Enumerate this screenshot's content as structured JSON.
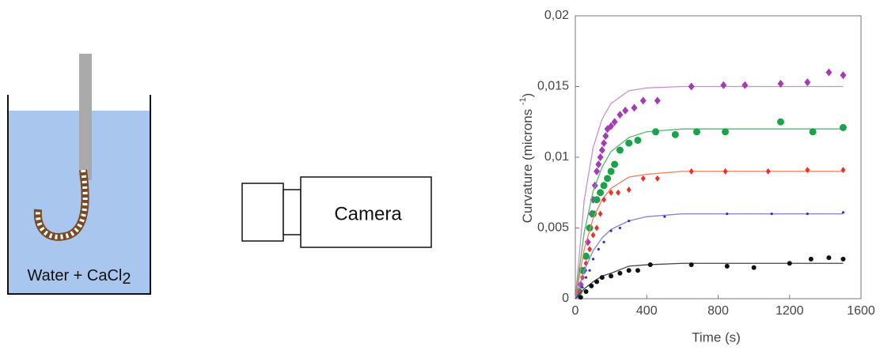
{
  "diagram": {
    "beaker_label": {
      "text": "Water + CaCl",
      "subscript": "2"
    },
    "camera_label": "Camera"
  },
  "chart_data": {
    "type": "scatter",
    "ylabel": {
      "text": "Curvature (microns ",
      "superscript": "-1",
      "end": ")"
    },
    "xlabel": "Time (s)",
    "xlim": [
      0,
      1600
    ],
    "xticks": [
      0,
      400,
      800,
      1200,
      1600
    ],
    "ylim": [
      0,
      0.02
    ],
    "yticks": [
      0,
      {
        "value": 0.005,
        "label": "0,005"
      },
      {
        "value": 0.01,
        "label": "0,01"
      },
      {
        "value": 0.015,
        "label": "0,015"
      },
      {
        "value": 0.02,
        "label": "0,02"
      }
    ],
    "fit_x": [
      0,
      50,
      100,
      150,
      200,
      300,
      400,
      600,
      800,
      1000,
      1200,
      1500
    ],
    "series": [
      {
        "color": "#a43cb4",
        "fit_color": "#c98fd6",
        "marker": "diamond",
        "x": [
          13,
          30,
          50,
          60,
          70,
          80,
          90,
          100,
          110,
          120,
          130,
          140,
          150,
          160,
          170,
          180,
          200,
          220,
          250,
          280,
          330,
          380,
          460,
          650,
          830,
          950,
          1150,
          1300,
          1420,
          1500
        ],
        "values": [
          0.0003,
          0.001,
          0.002,
          0.003,
          0.004,
          0.005,
          0.006,
          0.007,
          0.008,
          0.009,
          0.0095,
          0.01,
          0.0105,
          0.011,
          0.0115,
          0.012,
          0.0122,
          0.0125,
          0.013,
          0.0133,
          0.0135,
          0.014,
          0.014,
          0.015,
          0.0151,
          0.0151,
          0.0152,
          0.0153,
          0.016,
          0.0158
        ],
        "fit": [
          0,
          0.007,
          0.0107,
          0.0127,
          0.0138,
          0.0147,
          0.0149,
          0.015,
          0.015,
          0.015,
          0.015,
          0.015
        ]
      },
      {
        "color": "#1aa34a",
        "fit_color": "#55b96a",
        "marker": "big-dot",
        "x": [
          20,
          40,
          60,
          80,
          100,
          120,
          140,
          160,
          180,
          200,
          220,
          250,
          300,
          350,
          450,
          560,
          680,
          840,
          1150,
          1330,
          1500
        ],
        "values": [
          0.0005,
          0.002,
          0.003,
          0.005,
          0.006,
          0.007,
          0.0075,
          0.008,
          0.0085,
          0.009,
          0.0095,
          0.0105,
          0.011,
          0.0112,
          0.0118,
          0.0116,
          0.0118,
          0.0118,
          0.0125,
          0.0118,
          0.0121
        ],
        "fit": [
          0,
          0.0047,
          0.0076,
          0.0093,
          0.0104,
          0.0114,
          0.0118,
          0.012,
          0.012,
          0.012,
          0.012,
          0.012
        ]
      },
      {
        "color": "#ec3323",
        "fit_color": "#f07a5c",
        "marker": "small-diamond",
        "x": [
          20,
          40,
          60,
          80,
          100,
          120,
          140,
          160,
          200,
          240,
          300,
          380,
          460,
          650,
          840,
          1080,
          1300,
          1500
        ],
        "values": [
          0.0005,
          0.0015,
          0.0025,
          0.0035,
          0.0045,
          0.005,
          0.006,
          0.007,
          0.0075,
          0.0075,
          0.0077,
          0.0085,
          0.0085,
          0.009,
          0.009,
          0.009,
          0.0091,
          0.0091
        ],
        "fit": [
          0,
          0.0035,
          0.0057,
          0.007,
          0.0078,
          0.0086,
          0.0088,
          0.009,
          0.009,
          0.009,
          0.009,
          0.009
        ]
      },
      {
        "color": "#2b33c8",
        "fit_color": "#7f7fe0",
        "marker": "tiny-dot",
        "x": [
          20,
          40,
          60,
          80,
          100,
          130,
          160,
          200,
          250,
          300,
          500,
          850,
          1100,
          1300,
          1500
        ],
        "values": [
          0.0002,
          0.0008,
          0.0015,
          0.002,
          0.0028,
          0.0035,
          0.004,
          0.0048,
          0.005,
          0.0055,
          0.0058,
          0.006,
          0.006,
          0.006,
          0.0061
        ],
        "fit": [
          0,
          0.002,
          0.0034,
          0.0043,
          0.0049,
          0.0055,
          0.0058,
          0.006,
          0.006,
          0.006,
          0.006,
          0.006
        ]
      },
      {
        "color": "#111111",
        "fit_color": "#444444",
        "marker": "dot",
        "x": [
          30,
          60,
          90,
          120,
          150,
          200,
          250,
          300,
          350,
          420,
          650,
          850,
          1000,
          1200,
          1320,
          1420,
          1500
        ],
        "values": [
          0.0001,
          0.0005,
          0.0009,
          0.0012,
          0.0015,
          0.0016,
          0.0018,
          0.002,
          0.002,
          0.0024,
          0.0024,
          0.0023,
          0.0022,
          0.0025,
          0.0028,
          0.0029,
          0.0028
        ],
        "fit": [
          0,
          0.0007,
          0.0012,
          0.0016,
          0.0018,
          0.0023,
          0.0024,
          0.0025,
          0.0025,
          0.0025,
          0.0025,
          0.0025
        ]
      }
    ]
  }
}
